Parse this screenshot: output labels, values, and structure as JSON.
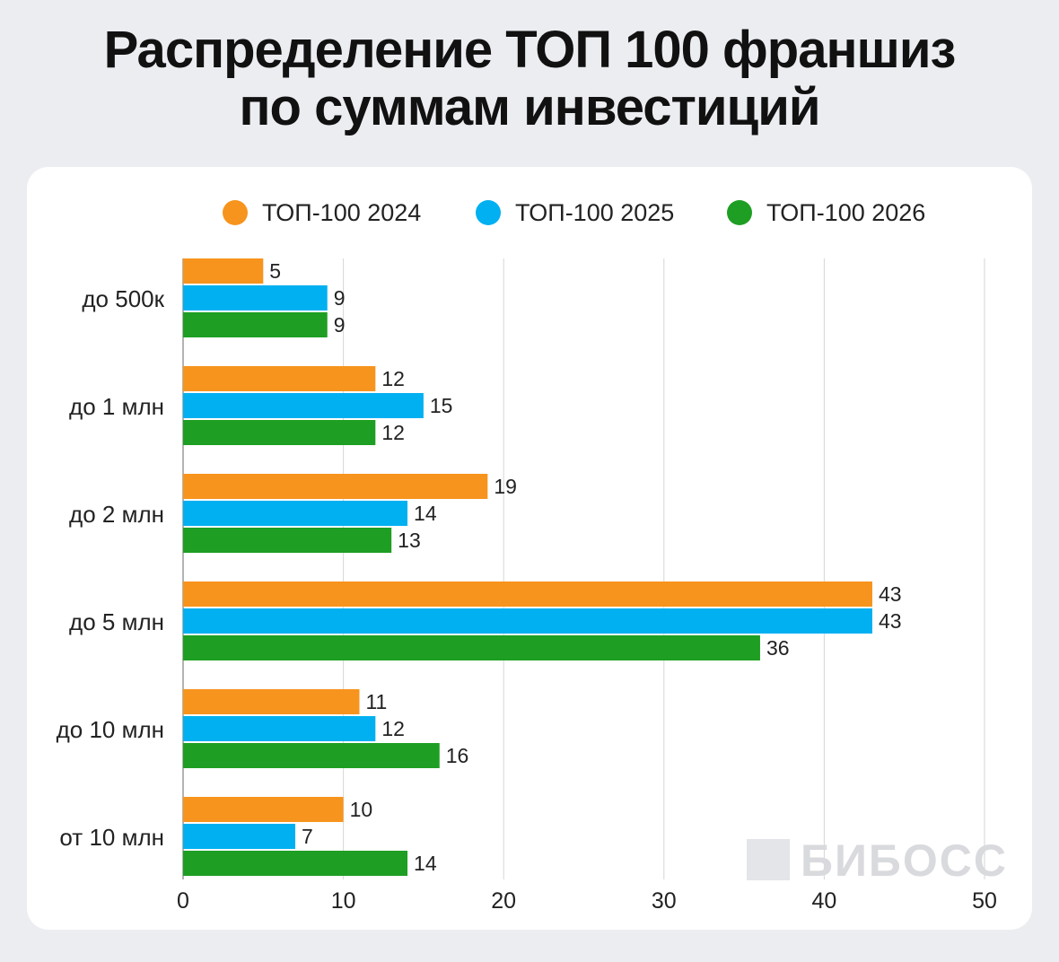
{
  "title": {
    "line1": "Распределение ТОП 100 франшиз",
    "line2": "по суммам инвестиций"
  },
  "watermark": {
    "text": "БИБОСС"
  },
  "chart_data": {
    "type": "bar",
    "orientation": "horizontal",
    "categories": [
      "до 500к",
      "до 1 млн",
      "до 2 млн",
      "до 5 млн",
      "до 10 млн",
      "от 10 млн"
    ],
    "series": [
      {
        "name": "ТОП-100 2024",
        "color": "#f7941d",
        "values": [
          5,
          12,
          19,
          43,
          11,
          10
        ]
      },
      {
        "name": "ТОП-100 2025",
        "color": "#00b0f0",
        "values": [
          9,
          15,
          14,
          43,
          12,
          7
        ]
      },
      {
        "name": "ТОП-100 2026",
        "color": "#1e9e23",
        "values": [
          9,
          12,
          13,
          36,
          16,
          14
        ]
      }
    ],
    "xlim": [
      0,
      50
    ],
    "xticks": [
      0,
      10,
      20,
      30,
      40,
      50
    ],
    "grid": true,
    "legend": "top"
  }
}
